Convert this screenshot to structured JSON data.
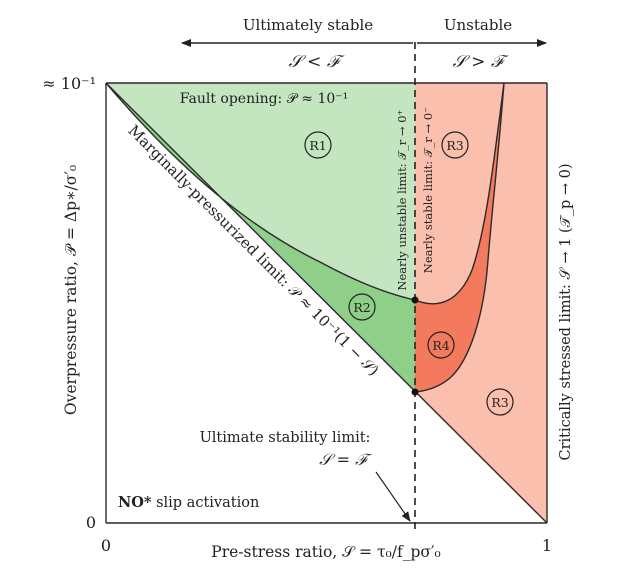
{
  "header": {
    "stable_label": "Ultimately stable",
    "unstable_label": "Unstable",
    "stable_ineq": "𝒮 < ℱ",
    "unstable_ineq": "𝒮 > ℱ"
  },
  "axes": {
    "y_top_tick": "≈ 10⁻¹",
    "y_zero_tick": "0",
    "x_zero_tick": "0",
    "x_one_tick": "1",
    "xlabel": "Pre-stress ratio, 𝒮 = τ₀/f_pσ′₀",
    "ylabel": "Overpressure ratio, 𝒫 = Δp∗/σ′₀",
    "right_label": "Critically stressed limit: 𝒮 → 1 (𝒯_p → 0)"
  },
  "annotations": {
    "fault_opening": "Fault opening: 𝒫 ≈ 10⁻¹",
    "marginal_limit": "Marginally-pressurized limit: 𝒫 ≈ 10⁻¹(1 − 𝒮)",
    "nearly_unstable": "Nearly unstable limit: 𝒯_r → 0⁺",
    "nearly_stable": "Nearly stable limit: 𝒯_r → 0⁻",
    "ultimate_title": "Ultimate stability limit:",
    "ultimate_eq": "𝒮 = ℱ",
    "no_slip_bold": "NO*",
    "no_slip_rest": " slip activation"
  },
  "regions": {
    "r1": "R1",
    "r2": "R2",
    "r3_top": "R3",
    "r4": "R4",
    "r3_bottom": "R3"
  },
  "colors": {
    "r1": "#c3e5c0",
    "r2": "#8fcf8a",
    "r3": "#fbbfae",
    "r4": "#f47a5e"
  }
}
